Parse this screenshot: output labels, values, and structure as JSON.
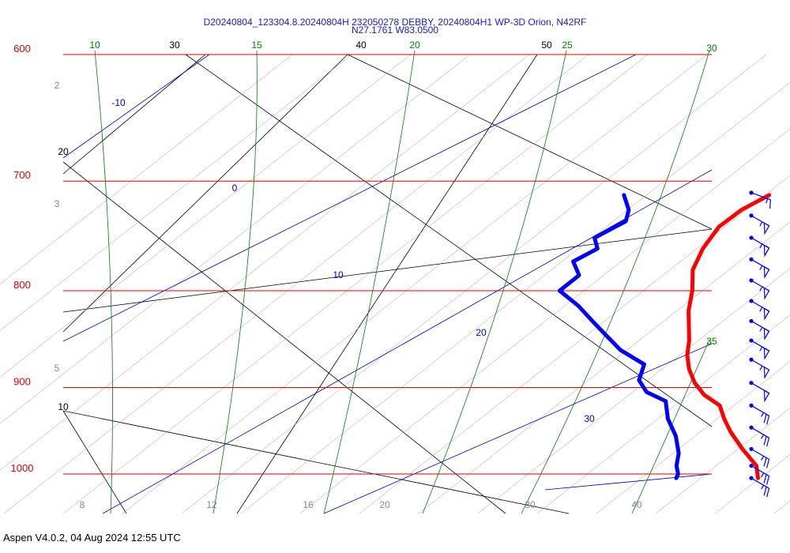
{
  "title_line1": "D20240804_123304.8.20240804H 232050278 DEBBY, 20240804H1 WP-3D Orion, N42RF",
  "title_line2": "N27.1761 W83.0500",
  "footer": "Aspen V4.0.2, 04 Aug 2024  12:55 UTC",
  "colors": {
    "isobar": "#e00000",
    "temperature_curve": "#ff0000",
    "dewpoint_curve": "#0000ff",
    "isotherm": "#000000",
    "dry_adiabat": "#000000",
    "moist_adiabat": "#008000",
    "mixing_ratio": "#0000c8",
    "wind_barb": "#0000ff"
  },
  "chart_data": {
    "type": "line",
    "pressure_levels": [
      "600",
      "700",
      "800",
      "900",
      "1000"
    ],
    "isotherm_labels": [
      "30",
      "40",
      "50",
      "20",
      "10"
    ],
    "dry_adiabat_labels": [
      "2",
      "3",
      "5",
      "8",
      "12",
      "16",
      "20",
      "30",
      "40"
    ],
    "moist_adiabat_labels": [
      "10",
      "15",
      "20",
      "25",
      "30",
      "35"
    ],
    "mixing_ratio_labels": [
      "-10",
      "0",
      "10",
      "20",
      "30"
    ],
    "series": [
      {
        "name": "temperature",
        "points": [
          [
            712,
            6.0
          ],
          [
            725,
            5.2
          ],
          [
            740,
            4.8
          ],
          [
            760,
            5.0
          ],
          [
            780,
            5.5
          ],
          [
            800,
            6.5
          ],
          [
            820,
            7.3
          ],
          [
            850,
            8.8
          ],
          [
            865,
            9.4
          ],
          [
            880,
            10.2
          ],
          [
            895,
            11.2
          ],
          [
            908,
            12.3
          ],
          [
            920,
            13.7
          ],
          [
            935,
            14.6
          ],
          [
            950,
            15.6
          ],
          [
            970,
            17.1
          ],
          [
            990,
            18.7
          ],
          [
            1005,
            19.4
          ]
        ]
      },
      {
        "name": "dewpoint",
        "points": [
          [
            712,
            -2.0
          ],
          [
            725,
            -1.0
          ],
          [
            735,
            -0.6
          ],
          [
            750,
            -1.5
          ],
          [
            760,
            -0.8
          ],
          [
            772,
            -1.5
          ],
          [
            785,
            -0.5
          ],
          [
            800,
            -0.8
          ],
          [
            815,
            1.0
          ],
          [
            830,
            2.5
          ],
          [
            845,
            4.0
          ],
          [
            860,
            5.5
          ],
          [
            875,
            7.5
          ],
          [
            892,
            8.0
          ],
          [
            905,
            9.0
          ],
          [
            915,
            10.5
          ],
          [
            935,
            11.5
          ],
          [
            955,
            12.8
          ],
          [
            975,
            13.8
          ],
          [
            990,
            14.3
          ],
          [
            1000,
            14.8
          ],
          [
            1005,
            14.9
          ]
        ]
      }
    ],
    "wind_barbs": [
      {
        "pressure": 710,
        "speed_kt": 15,
        "direction_deg": 290
      },
      {
        "pressure": 730,
        "speed_kt": 55,
        "direction_deg": 300
      },
      {
        "pressure": 750,
        "speed_kt": 55,
        "direction_deg": 300
      },
      {
        "pressure": 770,
        "speed_kt": 55,
        "direction_deg": 300
      },
      {
        "pressure": 790,
        "speed_kt": 55,
        "direction_deg": 300
      },
      {
        "pressure": 810,
        "speed_kt": 55,
        "direction_deg": 300
      },
      {
        "pressure": 830,
        "speed_kt": 55,
        "direction_deg": 300
      },
      {
        "pressure": 850,
        "speed_kt": 55,
        "direction_deg": 300
      },
      {
        "pressure": 870,
        "speed_kt": 55,
        "direction_deg": 300
      },
      {
        "pressure": 895,
        "speed_kt": 50,
        "direction_deg": 300
      },
      {
        "pressure": 920,
        "speed_kt": 25,
        "direction_deg": 300
      },
      {
        "pressure": 945,
        "speed_kt": 25,
        "direction_deg": 300
      },
      {
        "pressure": 970,
        "speed_kt": 25,
        "direction_deg": 300
      },
      {
        "pressure": 990,
        "speed_kt": 25,
        "direction_deg": 300
      },
      {
        "pressure": 1005,
        "speed_kt": 25,
        "direction_deg": 300
      }
    ]
  }
}
